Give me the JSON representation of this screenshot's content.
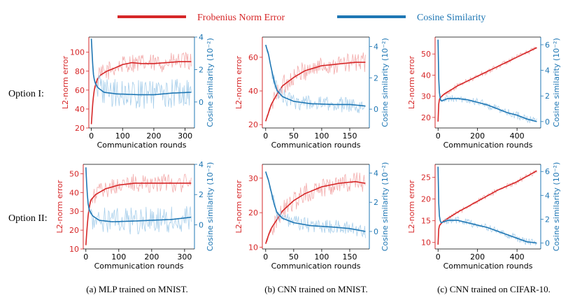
{
  "legend": {
    "items": [
      {
        "label": "Frobenius Norm Error",
        "color": "#d62728"
      },
      {
        "label": "Cosine Similarity",
        "color": "#1f77b4"
      }
    ]
  },
  "row_labels": [
    "Option I:",
    "Option II:"
  ],
  "captions": [
    "(a) MLP trained on MNIST.",
    "(b) CNN trained on MNIST.",
    "(c) CNN trained on CIFAR-10."
  ],
  "colors": {
    "red": "#d62728",
    "blue": "#1f77b4",
    "light_red": "#f2a3a3",
    "light_blue": "#9ecae9"
  },
  "chart_data": [
    {
      "type": "line",
      "row": "Option I",
      "panel": "(a) MLP trained on MNIST.",
      "xlabel": "Communication rounds",
      "ylabel_left": "L2-norm error",
      "ylabel_right": "Cosine similarity (10⁻²)",
      "xlim": [
        -8,
        330
      ],
      "xticks": [
        0,
        100,
        200,
        300
      ],
      "ylim_left": [
        20,
        116
      ],
      "yticks_left": [
        20,
        40,
        60,
        80,
        100
      ],
      "ylim_right": [
        -1.6,
        4.0
      ],
      "yticks_right": [
        0,
        2,
        4
      ],
      "x_max": 320,
      "series": [
        {
          "name": "Frobenius Norm Error",
          "axis": "left",
          "points": [
            [
              0,
              24
            ],
            [
              5,
              48
            ],
            [
              10,
              62
            ],
            [
              20,
              72
            ],
            [
              30,
              76
            ],
            [
              50,
              80
            ],
            [
              80,
              84
            ],
            [
              100,
              87
            ],
            [
              130,
              89
            ],
            [
              160,
              88
            ],
            [
              200,
              88
            ],
            [
              240,
              89
            ],
            [
              280,
              90
            ],
            [
              320,
              90
            ]
          ],
          "noise": 10
        },
        {
          "name": "Cosine Similarity",
          "axis": "right",
          "points": [
            [
              0,
              3.9
            ],
            [
              3,
              2.8
            ],
            [
              6,
              1.8
            ],
            [
              10,
              1.3
            ],
            [
              20,
              0.9
            ],
            [
              40,
              0.6
            ],
            [
              80,
              0.5
            ],
            [
              150,
              0.45
            ],
            [
              200,
              0.45
            ],
            [
              260,
              0.55
            ],
            [
              320,
              0.6
            ]
          ],
          "noise": 0.9
        }
      ]
    },
    {
      "type": "line",
      "row": "Option I",
      "panel": "(b) CNN trained on MNIST.",
      "xlabel": "Communication rounds",
      "ylabel_left": "L2-norm error",
      "ylabel_right": "Cosine similarity (10⁻²)",
      "xlim": [
        -6,
        185
      ],
      "xticks": [
        0,
        50,
        100,
        150
      ],
      "ylim_left": [
        18,
        72
      ],
      "yticks_left": [
        20,
        40,
        60
      ],
      "ylim_right": [
        -1.2,
        4.6
      ],
      "yticks_right": [
        0,
        2,
        4
      ],
      "x_max": 178,
      "series": [
        {
          "name": "Frobenius Norm Error",
          "axis": "left",
          "points": [
            [
              0,
              22
            ],
            [
              5,
              27
            ],
            [
              10,
              32
            ],
            [
              20,
              38
            ],
            [
              30,
              43
            ],
            [
              50,
              48
            ],
            [
              70,
              52
            ],
            [
              100,
              55
            ],
            [
              130,
              56
            ],
            [
              160,
              57
            ],
            [
              178,
              57
            ]
          ],
          "noise": 6
        },
        {
          "name": "Cosine Similarity",
          "axis": "right",
          "points": [
            [
              0,
              4.1
            ],
            [
              5,
              3.5
            ],
            [
              10,
              2.6
            ],
            [
              15,
              1.8
            ],
            [
              20,
              1.2
            ],
            [
              30,
              0.8
            ],
            [
              50,
              0.5
            ],
            [
              80,
              0.35
            ],
            [
              120,
              0.3
            ],
            [
              150,
              0.3
            ],
            [
              178,
              0.2
            ]
          ],
          "noise": 0.5
        }
      ]
    },
    {
      "type": "line",
      "row": "Option I",
      "panel": "(c) CNN trained on CIFAR-10.",
      "xlabel": "Communication rounds",
      "ylabel_left": "L2-norm error",
      "ylabel_right": "Cosine similarity (10⁻²)",
      "xlim": [
        -15,
        520
      ],
      "xticks": [
        0,
        200,
        400
      ],
      "ylim_left": [
        15,
        58
      ],
      "yticks_left": [
        20,
        30,
        40,
        50
      ],
      "ylim_right": [
        -0.5,
        6.6
      ],
      "yticks_right": [
        0,
        2,
        4,
        6
      ],
      "x_max": 500,
      "series": [
        {
          "name": "Frobenius Norm Error",
          "axis": "left",
          "points": [
            [
              0,
              18
            ],
            [
              3,
              26
            ],
            [
              8,
              29
            ],
            [
              30,
              31
            ],
            [
              100,
              35
            ],
            [
              200,
              39.5
            ],
            [
              300,
              44
            ],
            [
              400,
              48.5
            ],
            [
              500,
              53
            ]
          ],
          "noise": 1.2
        },
        {
          "name": "Cosine Similarity",
          "axis": "right",
          "points": [
            [
              0,
              6.4
            ],
            [
              3,
              3.5
            ],
            [
              8,
              2.0
            ],
            [
              15,
              1.6
            ],
            [
              50,
              1.8
            ],
            [
              100,
              1.8
            ],
            [
              150,
              1.7
            ],
            [
              200,
              1.5
            ],
            [
              250,
              1.3
            ],
            [
              300,
              1.0
            ],
            [
              350,
              0.7
            ],
            [
              400,
              0.5
            ],
            [
              450,
              0.2
            ],
            [
              500,
              0.0
            ]
          ],
          "noise": 0.3
        }
      ]
    },
    {
      "type": "line",
      "row": "Option II",
      "panel": "(a) MLP trained on MNIST.",
      "xlabel": "Communication rounds",
      "ylabel_left": "L2-norm error",
      "ylabel_right": "Cosine similarity (10⁻²)",
      "xlim": [
        -8,
        330
      ],
      "xticks": [
        0,
        100,
        200,
        300
      ],
      "ylim_left": [
        10,
        55
      ],
      "yticks_left": [
        10,
        20,
        30,
        40,
        50
      ],
      "ylim_right": [
        -1.6,
        4.0
      ],
      "yticks_right": [
        0,
        2,
        4
      ],
      "x_max": 320,
      "series": [
        {
          "name": "Frobenius Norm Error",
          "axis": "left",
          "points": [
            [
              0,
              12
            ],
            [
              4,
              22
            ],
            [
              8,
              30
            ],
            [
              15,
              36
            ],
            [
              30,
              39
            ],
            [
              60,
              42
            ],
            [
              100,
              44
            ],
            [
              150,
              45
            ],
            [
              200,
              45
            ],
            [
              260,
              45
            ],
            [
              320,
              45
            ]
          ],
          "noise": 5
        },
        {
          "name": "Cosine Similarity",
          "axis": "right",
          "points": [
            [
              0,
              3.8
            ],
            [
              3,
              2.5
            ],
            [
              6,
              1.5
            ],
            [
              10,
              1.0
            ],
            [
              20,
              0.6
            ],
            [
              40,
              0.3
            ],
            [
              80,
              0.2
            ],
            [
              150,
              0.25
            ],
            [
              200,
              0.3
            ],
            [
              260,
              0.35
            ],
            [
              320,
              0.5
            ]
          ],
          "noise": 0.9
        }
      ]
    },
    {
      "type": "line",
      "row": "Option II",
      "panel": "(b) CNN trained on MNIST.",
      "xlabel": "Communication rounds",
      "ylabel_left": "L2-norm error",
      "ylabel_right": "Cosine similarity (10⁻²)",
      "xlim": [
        -6,
        185
      ],
      "xticks": [
        0,
        50,
        100,
        150
      ],
      "ylim_left": [
        9.5,
        34
      ],
      "yticks_left": [
        10,
        20,
        30
      ],
      "ylim_right": [
        -1.2,
        4.6
      ],
      "yticks_right": [
        0,
        2,
        4
      ],
      "x_max": 178,
      "series": [
        {
          "name": "Frobenius Norm Error",
          "axis": "left",
          "points": [
            [
              0,
              11
            ],
            [
              5,
              13.5
            ],
            [
              10,
              15.5
            ],
            [
              20,
              18
            ],
            [
              30,
              20.5
            ],
            [
              50,
              23.5
            ],
            [
              70,
              25.5
            ],
            [
              100,
              27.5
            ],
            [
              130,
              28.5
            ],
            [
              160,
              29
            ],
            [
              178,
              28.5
            ]
          ],
          "noise": 3
        },
        {
          "name": "Cosine Similarity",
          "axis": "right",
          "points": [
            [
              0,
              4.1
            ],
            [
              5,
              3.5
            ],
            [
              10,
              2.7
            ],
            [
              15,
              1.9
            ],
            [
              20,
              1.3
            ],
            [
              30,
              0.9
            ],
            [
              50,
              0.6
            ],
            [
              80,
              0.4
            ],
            [
              120,
              0.3
            ],
            [
              150,
              0.2
            ],
            [
              178,
              0.0
            ]
          ],
          "noise": 0.5
        }
      ]
    },
    {
      "type": "line",
      "row": "Option II",
      "panel": "(c) CNN trained on CIFAR-10.",
      "xlabel": "Communication rounds",
      "ylabel_left": "L2-norm error",
      "ylabel_right": "Cosine similarity (10⁻²)",
      "xlim": [
        -15,
        520
      ],
      "xticks": [
        0,
        200,
        400
      ],
      "ylim_left": [
        8.5,
        28
      ],
      "yticks_left": [
        10,
        15,
        20,
        25
      ],
      "ylim_right": [
        -0.5,
        6.6
      ],
      "yticks_right": [
        0,
        2,
        4,
        6
      ],
      "x_max": 500,
      "series": [
        {
          "name": "Frobenius Norm Error",
          "axis": "left",
          "points": [
            [
              0,
              9.5
            ],
            [
              3,
              13
            ],
            [
              8,
              14
            ],
            [
              30,
              15
            ],
            [
              100,
              17
            ],
            [
              200,
              19.5
            ],
            [
              300,
              22
            ],
            [
              400,
              24
            ],
            [
              500,
              26.5
            ]
          ],
          "noise": 0.6
        },
        {
          "name": "Cosine Similarity",
          "axis": "right",
          "points": [
            [
              0,
              6.4
            ],
            [
              3,
              3.5
            ],
            [
              8,
              2.0
            ],
            [
              15,
              1.7
            ],
            [
              50,
              1.9
            ],
            [
              100,
              1.9
            ],
            [
              150,
              1.7
            ],
            [
              200,
              1.5
            ],
            [
              250,
              1.3
            ],
            [
              300,
              1.0
            ],
            [
              350,
              0.7
            ],
            [
              400,
              0.4
            ],
            [
              450,
              0.1
            ],
            [
              500,
              0.0
            ]
          ],
          "noise": 0.3
        }
      ]
    }
  ]
}
